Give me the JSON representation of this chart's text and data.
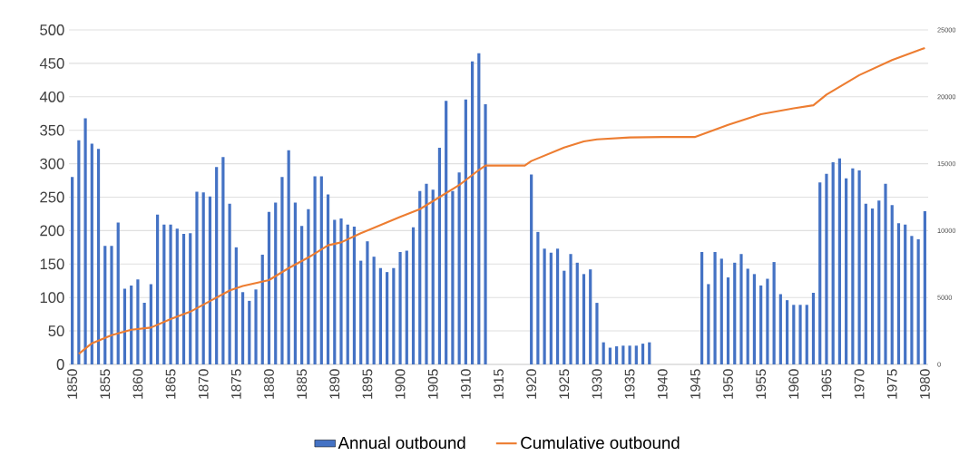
{
  "chart_data": {
    "type": "bar",
    "x": [
      1850,
      1851,
      1852,
      1853,
      1854,
      1855,
      1856,
      1857,
      1858,
      1859,
      1860,
      1861,
      1862,
      1863,
      1864,
      1865,
      1866,
      1867,
      1868,
      1869,
      1870,
      1871,
      1872,
      1873,
      1874,
      1875,
      1876,
      1877,
      1878,
      1879,
      1880,
      1881,
      1882,
      1883,
      1884,
      1885,
      1886,
      1887,
      1888,
      1889,
      1890,
      1891,
      1892,
      1893,
      1894,
      1895,
      1896,
      1897,
      1898,
      1899,
      1900,
      1901,
      1902,
      1903,
      1904,
      1905,
      1906,
      1907,
      1908,
      1909,
      1910,
      1911,
      1912,
      1913,
      1914,
      1915,
      1916,
      1917,
      1918,
      1919,
      1920,
      1921,
      1922,
      1923,
      1924,
      1925,
      1926,
      1927,
      1928,
      1929,
      1930,
      1931,
      1932,
      1933,
      1934,
      1935,
      1936,
      1937,
      1938,
      1939,
      1940,
      1941,
      1942,
      1943,
      1944,
      1945,
      1946,
      1947,
      1948,
      1949,
      1950,
      1951,
      1952,
      1953,
      1954,
      1955,
      1956,
      1957,
      1958,
      1959,
      1960,
      1961,
      1962,
      1963,
      1964,
      1965,
      1966,
      1967,
      1968,
      1969,
      1970,
      1971,
      1972,
      1973,
      1974,
      1975,
      1976,
      1977,
      1978,
      1979,
      1980
    ],
    "series": [
      {
        "name": "Annual outbound",
        "color": "#4472c4",
        "values": [
          280,
          335,
          368,
          330,
          322,
          177,
          177,
          212,
          113,
          118,
          127,
          92,
          120,
          224,
          209,
          209,
          203,
          195,
          196,
          258,
          257,
          251,
          295,
          310,
          240,
          175,
          108,
          95,
          112,
          164,
          228,
          242,
          280,
          320,
          242,
          207,
          232,
          281,
          281,
          254,
          216,
          218,
          209,
          206,
          155,
          184,
          161,
          144,
          138,
          144,
          168,
          170,
          205,
          259,
          270,
          261,
          324,
          394,
          259,
          287,
          396,
          453,
          465,
          389,
          null,
          null,
          null,
          null,
          null,
          null,
          284,
          198,
          173,
          167,
          173,
          140,
          165,
          152,
          135,
          142,
          92,
          33,
          25,
          27,
          28,
          28,
          28,
          31,
          33,
          null,
          null,
          null,
          null,
          null,
          null,
          null,
          168,
          120,
          168,
          158,
          130,
          152,
          165,
          143,
          135,
          118,
          128,
          153,
          105,
          96,
          89,
          89,
          89,
          107,
          272,
          285,
          302,
          308,
          278,
          293,
          290,
          240,
          233,
          245,
          270,
          238,
          211,
          209,
          192,
          187,
          229
        ]
      },
      {
        "name": "Cumulative outbound",
        "type": "line",
        "axis": "y2",
        "color": "#ed7d31",
        "x": [
          1851,
          1853,
          1856,
          1859,
          1862,
          1865,
          1868,
          1871,
          1874,
          1876,
          1880,
          1883,
          1886,
          1889,
          1891,
          1894,
          1900,
          1903,
          1906,
          1909,
          1912,
          1913,
          1919,
          1920,
          1925,
          1928,
          1930,
          1935,
          1940,
          1945,
          1950,
          1955,
          1960,
          1963,
          1965,
          1970,
          1975,
          1980
        ],
        "values": [
          790,
          1580,
          2190,
          2590,
          2750,
          3380,
          3940,
          4730,
          5520,
          5860,
          6300,
          7200,
          7990,
          8900,
          9120,
          9800,
          11030,
          11600,
          12500,
          13400,
          14530,
          14860,
          14860,
          15200,
          16210,
          16670,
          16820,
          16960,
          17000,
          17000,
          17900,
          18700,
          19140,
          19370,
          20160,
          21620,
          22750,
          23650
        ]
      }
    ],
    "xlim": [
      1849.5,
      1980.5
    ],
    "xticks": [
      1850,
      1855,
      1860,
      1865,
      1870,
      1875,
      1880,
      1885,
      1890,
      1895,
      1900,
      1905,
      1910,
      1915,
      1920,
      1925,
      1930,
      1935,
      1940,
      1945,
      1950,
      1955,
      1960,
      1965,
      1970,
      1975,
      1980
    ],
    "ylim": [
      0,
      500
    ],
    "yticks": [
      0,
      50,
      100,
      150,
      200,
      250,
      300,
      350,
      400,
      450,
      500
    ],
    "y2lim": [
      0,
      25000
    ],
    "y2ticks": [
      0,
      5000,
      10000,
      15000,
      20000,
      25000
    ],
    "grid": "y",
    "legend": "bottom"
  }
}
